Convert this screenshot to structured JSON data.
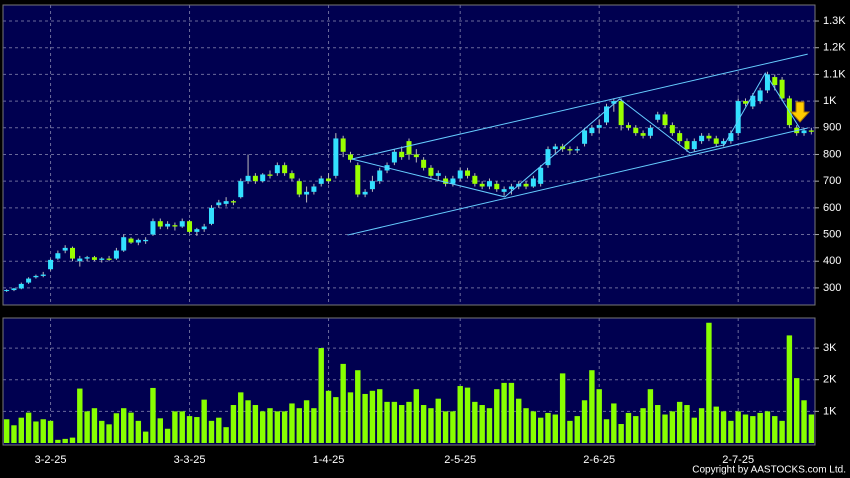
{
  "chart_data": [
    {
      "type": "candlestick",
      "categories": [
        null,
        null,
        null,
        null,
        null,
        null,
        "3-2-25",
        null,
        null,
        null,
        null,
        null,
        null,
        null,
        null,
        null,
        null,
        null,
        null,
        null,
        null,
        null,
        null,
        null,
        null,
        "3-3-25",
        null,
        null,
        null,
        null,
        null,
        null,
        null,
        null,
        null,
        null,
        null,
        null,
        null,
        null,
        null,
        null,
        null,
        null,
        "1-4-25",
        null,
        null,
        null,
        null,
        null,
        null,
        null,
        null,
        null,
        null,
        null,
        null,
        null,
        null,
        null,
        null,
        null,
        "2-5-25",
        null,
        null,
        null,
        null,
        null,
        null,
        null,
        null,
        null,
        null,
        null,
        null,
        null,
        null,
        null,
        null,
        null,
        null,
        "2-6-25",
        null,
        null,
        null,
        null,
        null,
        null,
        null,
        null,
        null,
        null,
        null,
        null,
        null,
        null,
        null,
        null,
        null,
        null,
        "2-7-25",
        null,
        null,
        null,
        null,
        null,
        null,
        null,
        null,
        null,
        null
      ],
      "ohlc": [
        [
          290,
          295,
          285,
          292
        ],
        [
          292,
          300,
          288,
          298
        ],
        [
          298,
          320,
          295,
          315
        ],
        [
          320,
          340,
          315,
          335
        ],
        [
          340,
          350,
          335,
          345
        ],
        [
          345,
          360,
          340,
          350
        ],
        [
          370,
          410,
          365,
          405
        ],
        [
          410,
          440,
          405,
          430
        ],
        [
          440,
          460,
          430,
          450
        ],
        [
          450,
          455,
          400,
          410
        ],
        [
          400,
          420,
          380,
          410
        ],
        [
          410,
          420,
          400,
          415
        ],
        [
          415,
          420,
          400,
          405
        ],
        [
          405,
          415,
          395,
          410
        ],
        [
          410,
          420,
          400,
          405
        ],
        [
          410,
          450,
          405,
          440
        ],
        [
          440,
          500,
          435,
          490
        ],
        [
          485,
          490,
          465,
          470
        ],
        [
          470,
          485,
          460,
          480
        ],
        [
          475,
          490,
          465,
          480
        ],
        [
          500,
          560,
          495,
          550
        ],
        [
          550,
          560,
          520,
          530
        ],
        [
          530,
          550,
          520,
          540
        ],
        [
          535,
          545,
          515,
          530
        ],
        [
          530,
          560,
          525,
          550
        ],
        [
          550,
          555,
          505,
          510
        ],
        [
          510,
          525,
          495,
          520
        ],
        [
          520,
          540,
          510,
          530
        ],
        [
          540,
          610,
          535,
          600
        ],
        [
          610,
          630,
          600,
          620
        ],
        [
          615,
          640,
          605,
          625
        ],
        [
          625,
          630,
          610,
          620
        ],
        [
          640,
          710,
          635,
          700
        ],
        [
          700,
          800,
          690,
          720
        ],
        [
          720,
          730,
          690,
          700
        ],
        [
          700,
          730,
          695,
          725
        ],
        [
          725,
          740,
          710,
          720
        ],
        [
          730,
          770,
          720,
          760
        ],
        [
          760,
          770,
          720,
          730
        ],
        [
          730,
          740,
          700,
          710
        ],
        [
          700,
          710,
          640,
          650
        ],
        [
          650,
          680,
          620,
          660
        ],
        [
          660,
          690,
          650,
          680
        ],
        [
          690,
          720,
          680,
          710
        ],
        [
          710,
          730,
          690,
          700
        ],
        [
          720,
          880,
          710,
          860
        ],
        [
          860,
          870,
          790,
          810
        ],
        [
          800,
          810,
          770,
          780
        ],
        [
          760,
          770,
          640,
          650
        ],
        [
          650,
          670,
          640,
          660
        ],
        [
          670,
          720,
          660,
          700
        ],
        [
          700,
          750,
          690,
          740
        ],
        [
          740,
          770,
          730,
          760
        ],
        [
          770,
          820,
          760,
          810
        ],
        [
          810,
          830,
          780,
          790
        ],
        [
          850,
          860,
          780,
          800
        ],
        [
          800,
          820,
          770,
          790
        ],
        [
          780,
          790,
          740,
          750
        ],
        [
          750,
          760,
          710,
          720
        ],
        [
          720,
          740,
          700,
          730
        ],
        [
          710,
          720,
          680,
          690
        ],
        [
          690,
          720,
          680,
          710
        ],
        [
          710,
          750,
          700,
          740
        ],
        [
          740,
          750,
          710,
          720
        ],
        [
          720,
          730,
          680,
          690
        ],
        [
          690,
          700,
          670,
          680
        ],
        [
          680,
          710,
          670,
          700
        ],
        [
          690,
          700,
          660,
          670
        ],
        [
          660,
          680,
          645,
          670
        ],
        [
          670,
          690,
          650,
          680
        ],
        [
          680,
          700,
          670,
          690
        ],
        [
          690,
          700,
          670,
          680
        ],
        [
          680,
          720,
          675,
          710
        ],
        [
          690,
          760,
          680,
          750
        ],
        [
          760,
          830,
          750,
          820
        ],
        [
          820,
          840,
          800,
          830
        ],
        [
          830,
          840,
          810,
          820
        ],
        [
          820,
          830,
          800,
          815
        ],
        [
          815,
          830,
          805,
          820
        ],
        [
          840,
          900,
          830,
          890
        ],
        [
          880,
          910,
          870,
          900
        ],
        [
          900,
          930,
          880,
          910
        ],
        [
          920,
          990,
          910,
          980
        ],
        [
          990,
          1010,
          960,
          1000
        ],
        [
          1000,
          1010,
          890,
          910
        ],
        [
          910,
          920,
          890,
          900
        ],
        [
          900,
          910,
          870,
          880
        ],
        [
          880,
          890,
          860,
          870
        ],
        [
          870,
          910,
          860,
          900
        ],
        [
          930,
          960,
          920,
          950
        ],
        [
          950,
          960,
          900,
          910
        ],
        [
          910,
          920,
          870,
          880
        ],
        [
          880,
          890,
          840,
          850
        ],
        [
          850,
          860,
          810,
          820
        ],
        [
          820,
          860,
          810,
          850
        ],
        [
          850,
          880,
          840,
          870
        ],
        [
          870,
          880,
          850,
          860
        ],
        [
          860,
          870,
          830,
          840
        ],
        [
          840,
          860,
          830,
          850
        ],
        [
          850,
          890,
          840,
          880
        ],
        [
          880,
          1010,
          870,
          1000
        ],
        [
          1000,
          1010,
          980,
          990
        ],
        [
          980,
          1030,
          970,
          1020
        ],
        [
          1000,
          1050,
          990,
          1040
        ],
        [
          1040,
          1110,
          1030,
          1100
        ],
        [
          1090,
          1100,
          1040,
          1060
        ],
        [
          1080,
          1090,
          1000,
          1010
        ],
        [
          1010,
          1020,
          900,
          910
        ],
        [
          900,
          910,
          870,
          880
        ],
        [
          880,
          900,
          870,
          890
        ],
        [
          890,
          900,
          875,
          885
        ]
      ],
      "up_color": "#33e0ff",
      "down_color": "#99ff00",
      "wick_color": "#bbbbbb",
      "ylim": [
        236,
        1360
      ],
      "yticks": [
        300,
        400,
        500,
        600,
        700,
        800,
        900,
        {
          "value": 1000,
          "label": "1K"
        },
        {
          "value": 1100,
          "label": "1.1K"
        },
        {
          "value": 1200,
          "label": "1.2K"
        },
        {
          "value": 1300,
          "label": "1.3K"
        }
      ],
      "grid": true,
      "trend_lines": [
        {
          "color": "#66ccff",
          "x": [
            47.2,
            109.5
          ],
          "y": [
            783,
            1176
          ]
        },
        {
          "color": "#66ccff",
          "x": [
            46.6,
            109.5
          ],
          "y": [
            498,
            899
          ]
        },
        {
          "color": "#66ccff",
          "x": [
            47.2,
            68.1,
            83.8,
            93.4,
            98.1,
            103.7,
            108.4
          ],
          "y": [
            783,
            641,
            1008,
            806,
            836,
            1105,
            899
          ]
        }
      ]
    },
    {
      "type": "bar",
      "values": [
        750,
        560,
        800,
        960,
        680,
        750,
        700,
        100,
        130,
        170,
        1720,
        1000,
        1100,
        700,
        590,
        940,
        1100,
        960,
        700,
        360,
        1740,
        780,
        450,
        1000,
        1000,
        850,
        820,
        1370,
        700,
        800,
        500,
        1200,
        1600,
        1350,
        1200,
        1000,
        1100,
        1000,
        1000,
        1250,
        1100,
        1350,
        1100,
        3000,
        1650,
        1450,
        2500,
        1600,
        2300,
        1550,
        1650,
        1700,
        1300,
        1300,
        1200,
        1300,
        1700,
        1200,
        1100,
        1400,
        1000,
        1000,
        1800,
        1750,
        1300,
        1200,
        1100,
        1700,
        1900,
        1900,
        1400,
        1100,
        1000,
        800,
        950,
        900,
        2200,
        700,
        850,
        1350,
        2300,
        1700,
        750,
        1250,
        600,
        950,
        850,
        1100,
        1700,
        1200,
        900,
        1000,
        1300,
        1200,
        800,
        1100,
        3800,
        1150,
        1000,
        700,
        1000,
        900,
        850,
        950,
        1000,
        850,
        700,
        3400,
        2050,
        1350,
        900
      ],
      "color": "#88ff00",
      "ylim": [
        0,
        3950
      ],
      "yticks": [
        {
          "value": 1000,
          "label": "1K"
        },
        {
          "value": 2000,
          "label": "2K"
        },
        {
          "value": 3000,
          "label": "3K"
        }
      ],
      "grid": true
    }
  ],
  "copyright": "Copyright by AASTOCKS.com Ltd."
}
